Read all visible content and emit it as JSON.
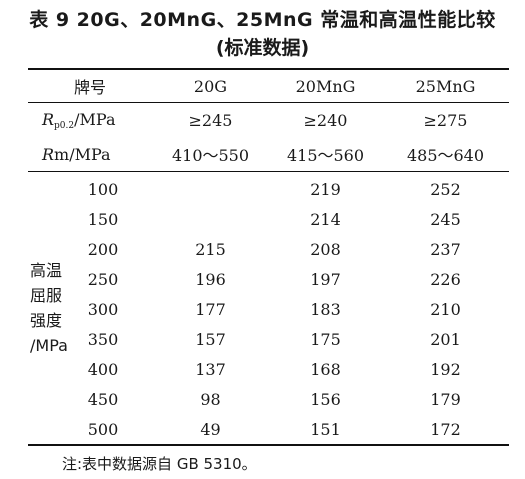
{
  "title": "表 9   20G、20MnG、25MnG 常温和高温性能比较",
  "subtitle": "(标准数据)",
  "header": {
    "col0": "牌号",
    "cols": [
      "20G",
      "20MnG",
      "25MnG"
    ]
  },
  "props": [
    {
      "label_main": "R",
      "label_sub": "p0.2",
      "label_tail": "/MPa",
      "values": [
        "≥245",
        "≥240",
        "≥275"
      ]
    },
    {
      "label_main": "R",
      "label_sub": "",
      "label_tail": "m/MPa",
      "values": [
        "410～550",
        "415～560",
        "485～640"
      ]
    }
  ],
  "yield_label": [
    "高温",
    "屈服",
    "强度",
    "/MPa"
  ],
  "temps": [
    {
      "t": "100",
      "values": [
        "",
        "219",
        "252"
      ]
    },
    {
      "t": "150",
      "values": [
        "",
        "214",
        "245"
      ]
    },
    {
      "t": "200",
      "values": [
        "215",
        "208",
        "237"
      ]
    },
    {
      "t": "250",
      "values": [
        "196",
        "197",
        "226"
      ]
    },
    {
      "t": "300",
      "values": [
        "177",
        "183",
        "210"
      ]
    },
    {
      "t": "350",
      "values": [
        "157",
        "175",
        "201"
      ]
    },
    {
      "t": "400",
      "values": [
        "137",
        "168",
        "192"
      ]
    },
    {
      "t": "450",
      "values": [
        "98",
        "156",
        "179"
      ]
    },
    {
      "t": "500",
      "values": [
        "49",
        "151",
        "172"
      ]
    }
  ],
  "note": "注:表中数据源自 GB 5310。"
}
